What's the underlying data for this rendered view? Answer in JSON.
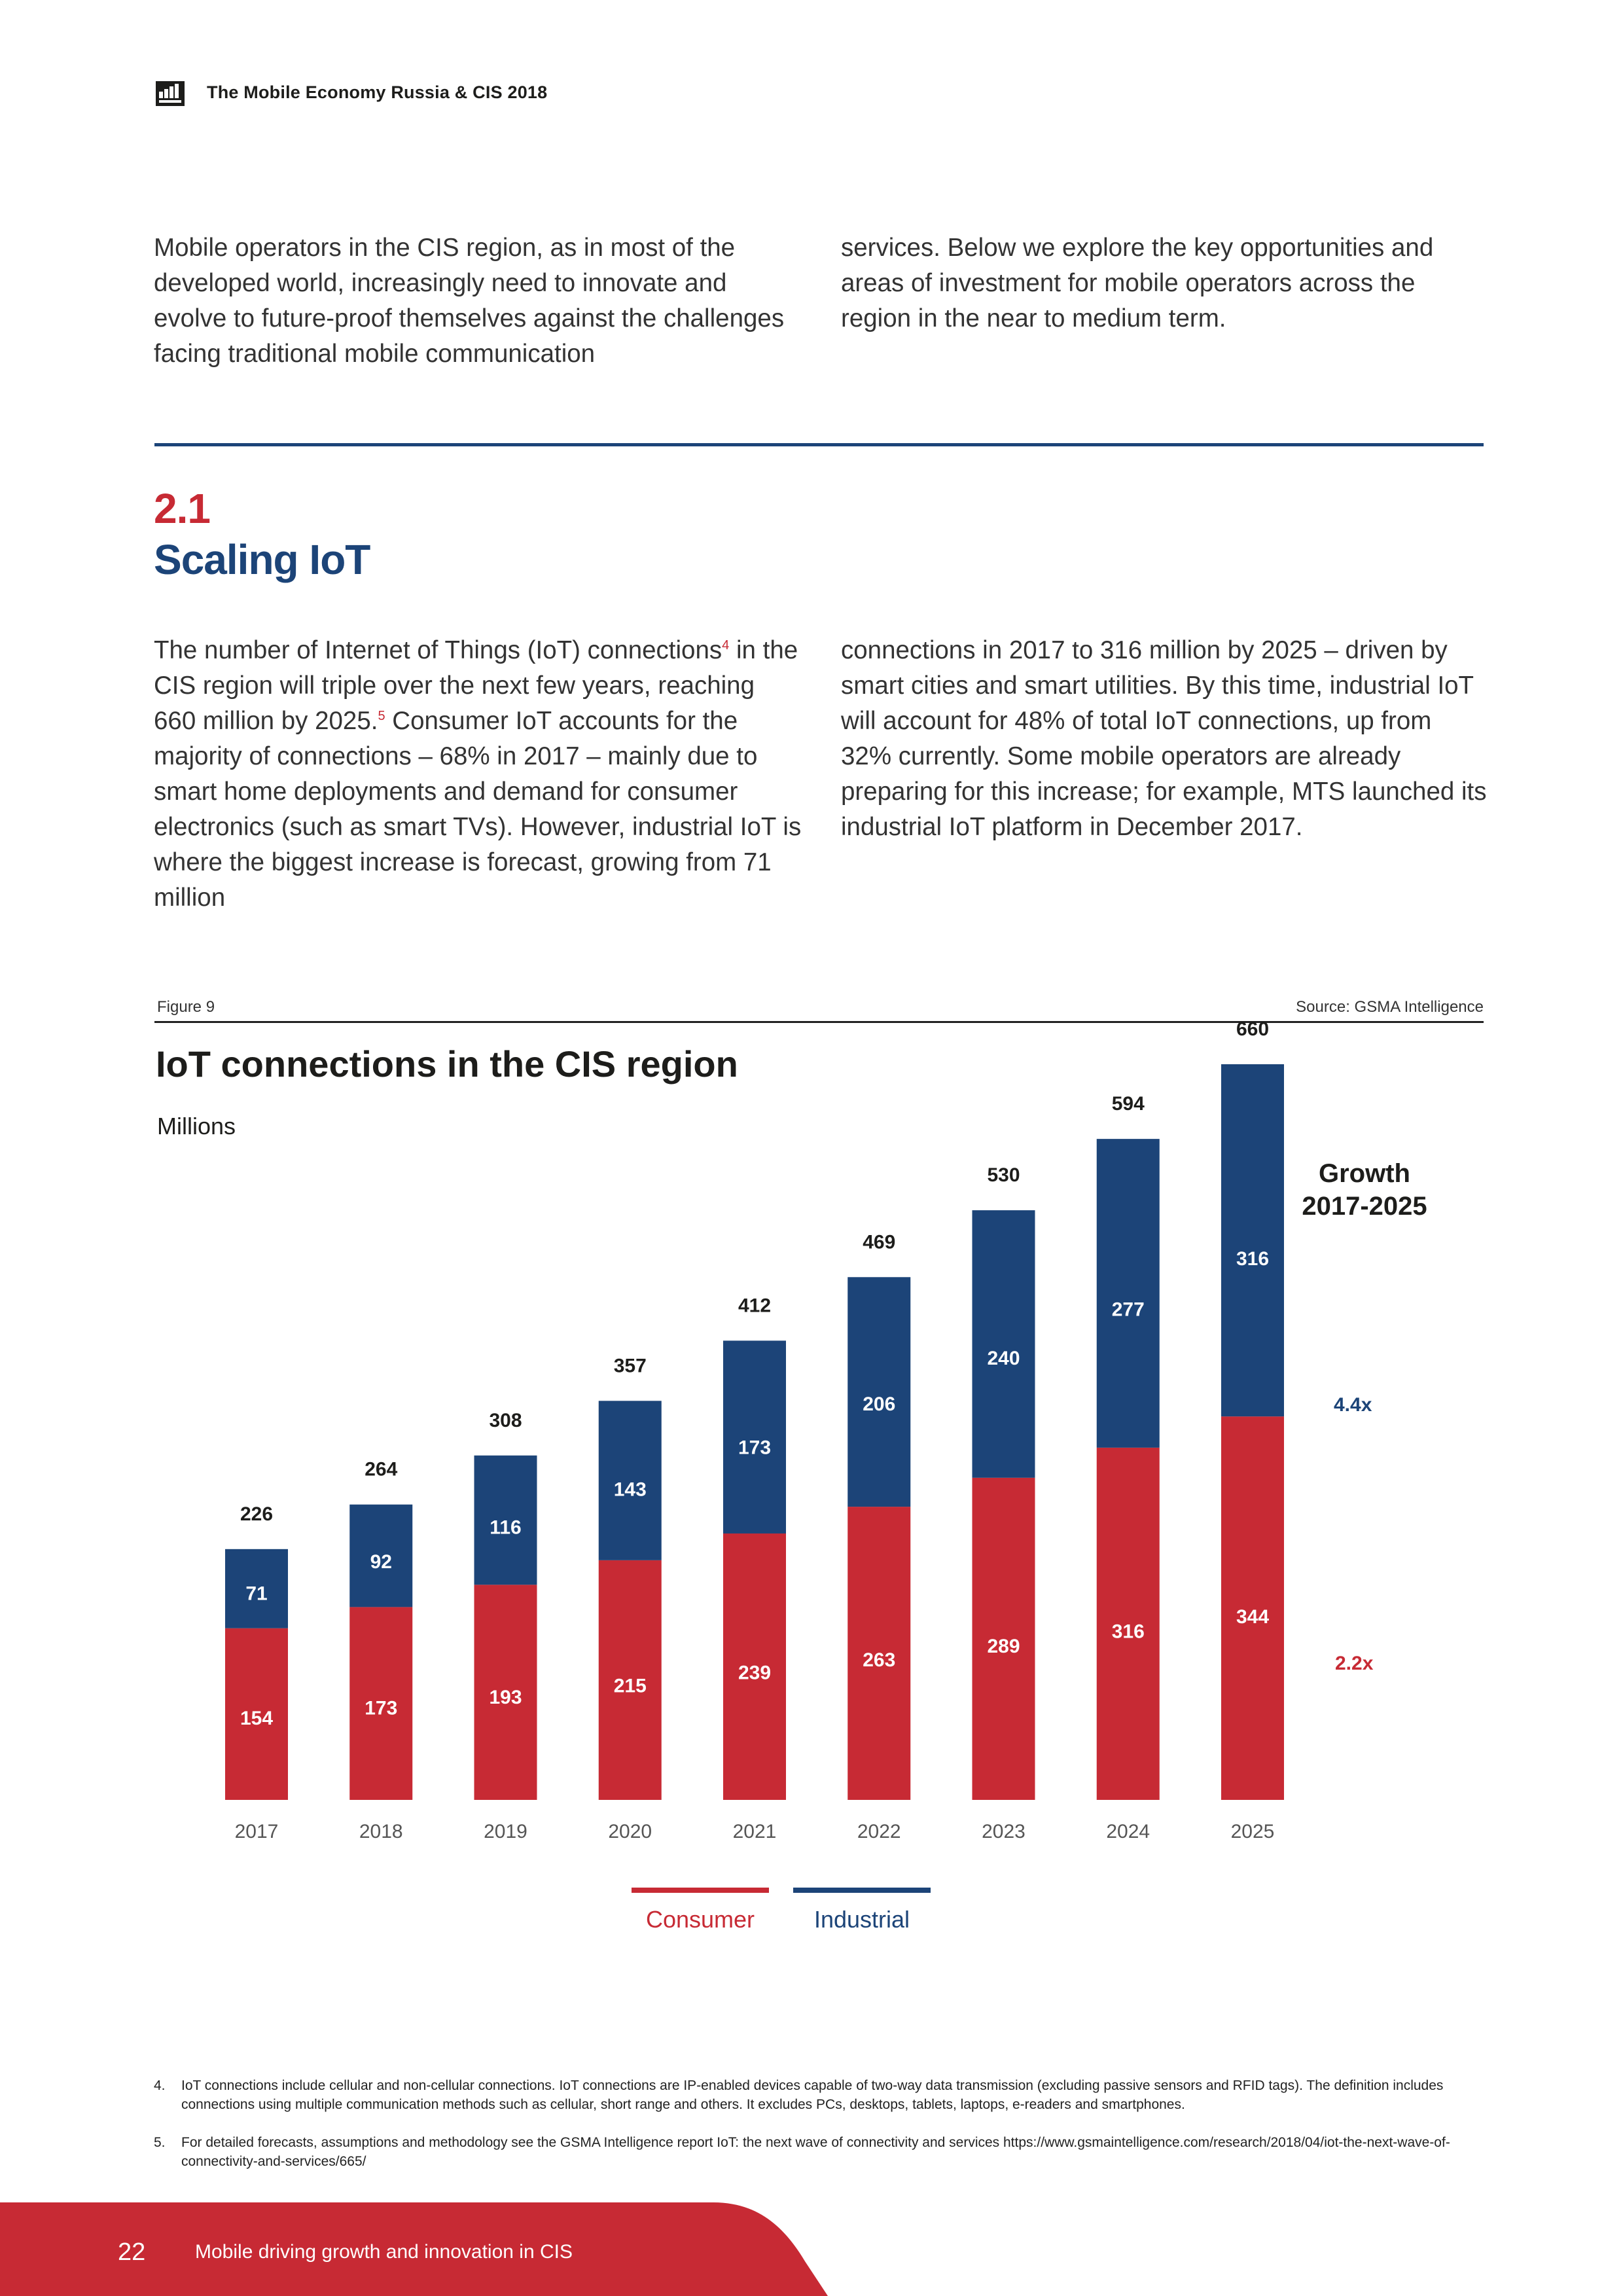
{
  "header": {
    "title": "The Mobile Economy Russia & CIS 2018"
  },
  "intro": {
    "left": "Mobile operators in the CIS region, as in most of the developed world, increasingly need to innovate and evolve to future-proof themselves against the challenges facing traditional mobile communication",
    "right": "services. Below we explore the key opportunities and areas of investment for mobile operators across the region in the near to medium term."
  },
  "section": {
    "number": "2.1",
    "title": "Scaling IoT"
  },
  "iot_text": {
    "left_a": "The number of Internet of Things (IoT) connections",
    "left_sup_a": "4",
    "left_b": " in the CIS region will triple over the next few years, reaching 660 million by 2025.",
    "left_sup_b": "5",
    "left_c": " Consumer IoT accounts for the majority of connections – 68% in 2017 – mainly due to smart home deployments and demand for consumer electronics (such as smart TVs). However, industrial IoT is where the biggest increase is forecast, growing from 71 million",
    "right": "connections in 2017 to 316 million by 2025 – driven by smart cities and smart utilities. By this time, industrial IoT will account for 48% of total IoT connections, up from 32% currently. Some mobile operators are already preparing for this increase; for example, MTS launched its industrial IoT platform in December 2017."
  },
  "figure": {
    "label": "Figure 9",
    "source": "Source: GSMA Intelligence"
  },
  "chart_data": {
    "type": "bar",
    "stacked": true,
    "title": "IoT connections in the CIS region",
    "ylabel": "Millions",
    "categories": [
      "2017",
      "2018",
      "2019",
      "2020",
      "2021",
      "2022",
      "2023",
      "2024",
      "2025"
    ],
    "series": [
      {
        "name": "Consumer",
        "color": "#c72a34",
        "values": [
          154,
          173,
          193,
          215,
          239,
          263,
          289,
          316,
          344
        ]
      },
      {
        "name": "Industrial",
        "color": "#1c4478",
        "values": [
          71,
          92,
          116,
          143,
          173,
          206,
          240,
          277,
          316
        ]
      }
    ],
    "totals": [
      226,
      264,
      308,
      357,
      412,
      469,
      530,
      594,
      660
    ],
    "growth_header": "Growth 2017-2025",
    "growth": {
      "Industrial": "4.4x",
      "Consumer": "2.2x"
    },
    "legend_position": "bottom-center"
  },
  "legend": {
    "consumer": "Consumer",
    "industrial": "Industrial"
  },
  "footnotes": [
    {
      "num": "4.",
      "text": "IoT connections include cellular and non-cellular connections. IoT connections are IP-enabled devices capable of two-way data transmission (excluding passive sensors and RFID tags). The definition includes connections using multiple communication methods such as cellular, short range and others. It excludes PCs, desktops, tablets, laptops, e-readers and smartphones."
    },
    {
      "num": "5.",
      "text": "For detailed forecasts, assumptions and methodology see the GSMA Intelligence report IoT: the next wave of connectivity and services https://www.gsmaintelligence.com/research/2018/04/iot-the-next-wave-of-connectivity-and-services/665/"
    }
  ],
  "footer": {
    "page_number": "22",
    "text": "Mobile driving growth and innovation in CIS"
  },
  "colors": {
    "red": "#c72a34",
    "blue": "#1c4478"
  }
}
